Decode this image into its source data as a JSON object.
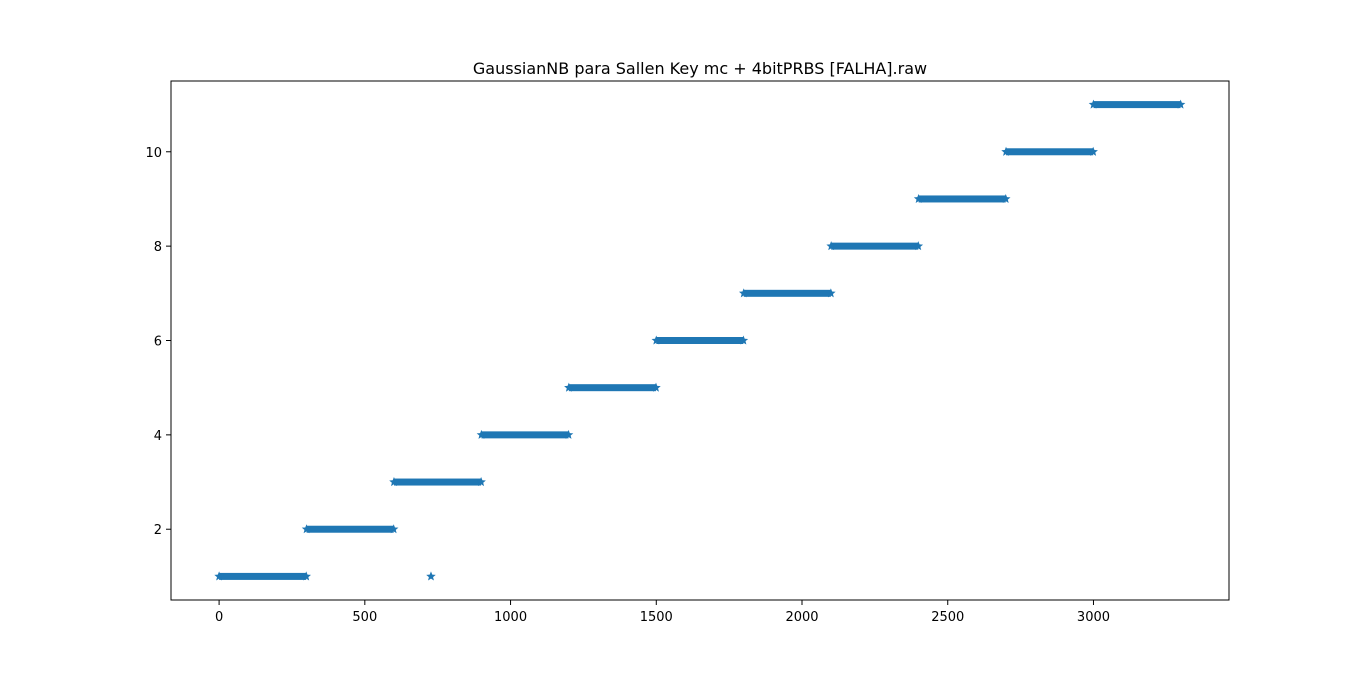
{
  "chart_data": {
    "type": "scatter",
    "title": "GaussianNB para Sallen Key mc + 4bitPRBS [FALHA].raw",
    "xlabel": "",
    "ylabel": "",
    "xlim": [
      -165,
      3465
    ],
    "ylim": [
      0.5,
      11.5
    ],
    "xticks": [
      0,
      500,
      1000,
      1500,
      2000,
      2500,
      3000
    ],
    "yticks": [
      2,
      4,
      6,
      8,
      10
    ],
    "marker": "*",
    "color": "#1f77b4",
    "grid": false,
    "legend": "none",
    "segments": [
      {
        "x_start": 0,
        "x_end": 299,
        "y": 1
      },
      {
        "x_start": 300,
        "x_end": 599,
        "y": 2
      },
      {
        "x_start": 600,
        "x_end": 899,
        "y": 3
      },
      {
        "x_start": 900,
        "x_end": 1199,
        "y": 4
      },
      {
        "x_start": 1200,
        "x_end": 1499,
        "y": 5
      },
      {
        "x_start": 1500,
        "x_end": 1799,
        "y": 6
      },
      {
        "x_start": 1800,
        "x_end": 2099,
        "y": 7
      },
      {
        "x_start": 2100,
        "x_end": 2399,
        "y": 8
      },
      {
        "x_start": 2400,
        "x_end": 2699,
        "y": 9
      },
      {
        "x_start": 2700,
        "x_end": 2999,
        "y": 10
      },
      {
        "x_start": 3000,
        "x_end": 3299,
        "y": 11
      }
    ],
    "outliers": [
      {
        "x": 727,
        "y": 1
      }
    ]
  }
}
